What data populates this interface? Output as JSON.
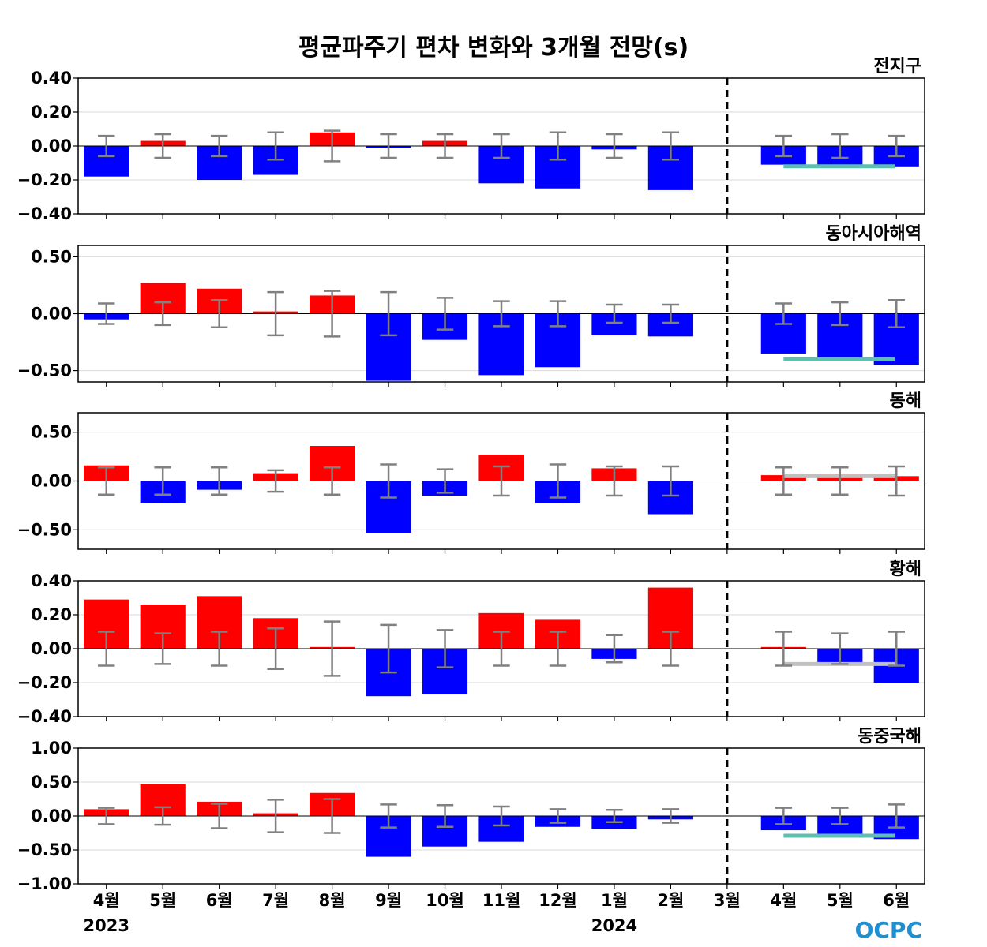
{
  "chart_data": {
    "type": "bar",
    "title": "평균파주기 편차 변화와 3개월 전망(s)",
    "categories": [
      "4월",
      "5월",
      "6월",
      "7월",
      "8월",
      "9월",
      "10월",
      "11월",
      "12월",
      "1월",
      "2월",
      "3월",
      "4월",
      "5월",
      "6월"
    ],
    "year_labels": [
      {
        "index": 0,
        "label": "2023"
      },
      {
        "index": 9,
        "label": "2024"
      }
    ],
    "forecast_divider_index": 11,
    "colors": {
      "positive": "#ff0000",
      "negative": "#0000ff",
      "errorbar": "#808080",
      "forecast_teal": "#5fbfaf",
      "forecast_gray": "#c0c0c0",
      "grid": "#d9d9d9"
    },
    "logo": "OCPC",
    "panels": [
      {
        "region": "전지구",
        "ylim": [
          -0.4,
          0.4
        ],
        "yticks": [
          -0.4,
          -0.2,
          0.0,
          0.2,
          0.4
        ],
        "tick_labels": [
          "−0.40",
          "−0.20",
          "0.00",
          "0.20",
          "0.40"
        ],
        "values": [
          -0.18,
          0.03,
          -0.2,
          -0.17,
          0.08,
          -0.01,
          0.03,
          -0.22,
          -0.25,
          -0.02,
          -0.26,
          0.0,
          -0.11,
          -0.12,
          -0.12
        ],
        "error": [
          0.06,
          0.07,
          0.06,
          0.08,
          0.09,
          0.07,
          0.07,
          0.07,
          0.08,
          0.07,
          0.08,
          null,
          0.06,
          0.07,
          0.06
        ],
        "forecast_line": {
          "value": -0.12,
          "color": "teal"
        }
      },
      {
        "region": "동아시아해역",
        "ylim": [
          -0.6,
          0.6
        ],
        "yticks": [
          -0.5,
          0.0,
          0.5
        ],
        "tick_labels": [
          "−0.50",
          "0.00",
          "0.50"
        ],
        "values": [
          -0.05,
          0.27,
          0.22,
          0.02,
          0.16,
          -0.59,
          -0.23,
          -0.54,
          -0.47,
          -0.19,
          -0.2,
          0.0,
          -0.35,
          -0.39,
          -0.45
        ],
        "error": [
          0.09,
          0.1,
          0.12,
          0.19,
          0.2,
          0.19,
          0.14,
          0.11,
          0.11,
          0.08,
          0.08,
          null,
          0.09,
          0.1,
          0.12
        ],
        "forecast_line": {
          "value": -0.4,
          "color": "teal"
        }
      },
      {
        "region": "동해",
        "ylim": [
          -0.7,
          0.7
        ],
        "yticks": [
          -0.5,
          0.0,
          0.5
        ],
        "tick_labels": [
          "−0.50",
          "0.00",
          "0.50"
        ],
        "values": [
          0.16,
          -0.23,
          -0.09,
          0.08,
          0.36,
          -0.53,
          -0.15,
          0.27,
          -0.23,
          0.13,
          -0.34,
          0.0,
          0.06,
          0.07,
          0.05
        ],
        "error": [
          0.14,
          0.14,
          0.14,
          0.11,
          0.14,
          0.17,
          0.12,
          0.15,
          0.17,
          0.15,
          0.15,
          null,
          0.14,
          0.14,
          0.15
        ],
        "forecast_line": {
          "value": 0.05,
          "color": "gray"
        }
      },
      {
        "region": "황해",
        "ylim": [
          -0.4,
          0.4
        ],
        "yticks": [
          -0.4,
          -0.2,
          0.0,
          0.2,
          0.4
        ],
        "tick_labels": [
          "−0.40",
          "−0.20",
          "0.00",
          "0.20",
          "0.40"
        ],
        "values": [
          0.29,
          0.26,
          0.31,
          0.18,
          0.01,
          -0.28,
          -0.27,
          0.21,
          0.17,
          -0.06,
          0.36,
          0.0,
          0.01,
          -0.08,
          -0.2
        ],
        "error": [
          0.1,
          0.09,
          0.1,
          0.12,
          0.16,
          0.14,
          0.11,
          0.1,
          0.1,
          0.08,
          0.1,
          null,
          0.1,
          0.09,
          0.1
        ],
        "forecast_line": {
          "value": -0.09,
          "color": "gray"
        }
      },
      {
        "region": "동중국해",
        "ylim": [
          -1.0,
          1.0
        ],
        "yticks": [
          -1.0,
          -0.5,
          0.0,
          0.5,
          1.0
        ],
        "tick_labels": [
          "−1.00",
          "−0.50",
          "0.00",
          "0.50",
          "1.00"
        ],
        "values": [
          0.1,
          0.47,
          0.21,
          0.04,
          0.34,
          -0.6,
          -0.45,
          -0.38,
          -0.16,
          -0.19,
          -0.05,
          0.0,
          -0.21,
          -0.27,
          -0.34
        ],
        "error": [
          0.12,
          0.13,
          0.18,
          0.24,
          0.25,
          0.17,
          0.16,
          0.14,
          0.1,
          0.09,
          0.1,
          null,
          0.12,
          0.12,
          0.17
        ],
        "forecast_line": {
          "value": -0.29,
          "color": "teal"
        }
      }
    ]
  }
}
